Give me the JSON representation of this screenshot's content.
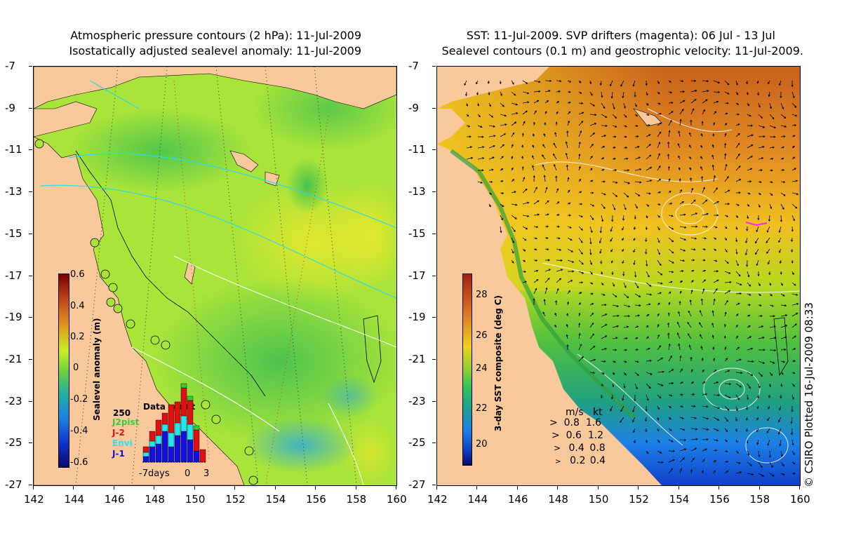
{
  "left_panel": {
    "title_line1": "Atmospheric pressure contours (2 hPa): 11-Jul-2009",
    "title_line2": "Isostatically adjusted sealevel anomaly: 11-Jul-2009",
    "colorbar": {
      "label": "Sealevel anomaly (m)",
      "ticks": [
        "0.6",
        "0.4",
        "0.2",
        "0",
        "-0.2",
        "-0.4",
        "-0.6"
      ]
    },
    "histogram": {
      "title": "Data count",
      "ymax_label": "250",
      "series": [
        {
          "name": "J2pist",
          "color": "#3cc83c"
        },
        {
          "name": "J-2",
          "color": "#e01010"
        },
        {
          "name": "Envi",
          "color": "#20e8f0"
        },
        {
          "name": "J-1",
          "color": "#1010e0"
        }
      ],
      "x_labels": [
        "-7days",
        "0",
        "3"
      ]
    }
  },
  "right_panel": {
    "title_line1": "SST: 11-Jul-2009. SVP drifters (magenta): 06 Jul - 13 Jul",
    "title_line2": "Sealevel contours (0.1 m) and geostrophic velocity: 11-Jul-2009.",
    "colorbar": {
      "label": "3-day SST composite (deg C)",
      "ticks": [
        "28",
        "26",
        "24",
        "22",
        "20"
      ]
    },
    "velocity_legend": {
      "header_ms": "m/s",
      "header_kt": "kt",
      "rows": [
        {
          "ms": "0.8",
          "kt": "1.6"
        },
        {
          "ms": "0.6",
          "kt": "1.2"
        },
        {
          "ms": "0.4",
          "kt": "0.8"
        },
        {
          "ms": "0.2",
          "kt": "0.4"
        }
      ]
    }
  },
  "axes": {
    "x_ticks": [
      "142",
      "144",
      "146",
      "148",
      "150",
      "152",
      "154",
      "156",
      "158",
      "160"
    ],
    "y_ticks": [
      "-7",
      "-9",
      "-11",
      "-13",
      "-15",
      "-17",
      "-19",
      "-21",
      "-23",
      "-25",
      "-27"
    ],
    "xlim": [
      142,
      160
    ],
    "ylim": [
      -27,
      -7
    ]
  },
  "copyright": "© CSIRO Plotted 16-Jul-2009 08:33",
  "colors": {
    "land": "#f9c89b",
    "ssh_green": "#6fd23a",
    "ssh_yellow": "#c8ee2a",
    "sst_orange": "#d8742a",
    "sst_yellow": "#f0d020",
    "sst_blue": "#1c64e6"
  }
}
